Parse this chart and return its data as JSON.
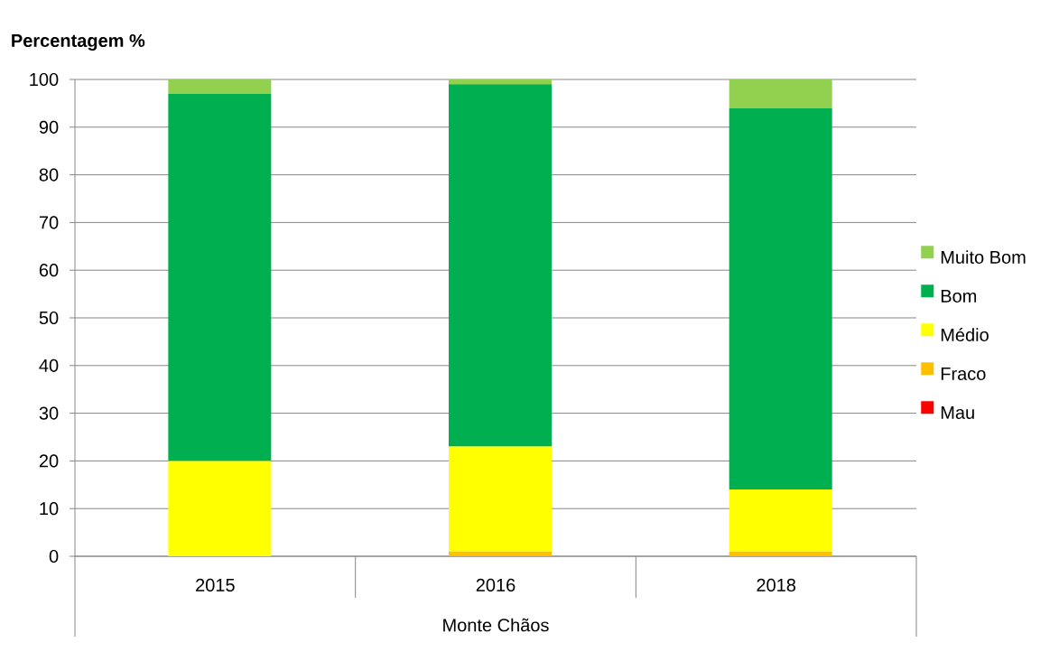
{
  "chart_data": {
    "type": "bar",
    "stacked": true,
    "ylabel": "Percentagem %",
    "xlabel": "Monte Chãos",
    "categories": [
      "2015",
      "2016",
      "2018"
    ],
    "series": [
      {
        "name": "Mau",
        "color": "#ff0000",
        "values": [
          0,
          0,
          0
        ]
      },
      {
        "name": "Fraco",
        "color": "#ffc000",
        "values": [
          0,
          1,
          1
        ]
      },
      {
        "name": "Médio",
        "color": "#ffff00",
        "values": [
          20,
          22,
          13
        ]
      },
      {
        "name": "Bom",
        "color": "#00b050",
        "values": [
          77,
          76,
          80
        ]
      },
      {
        "name": "Muito Bom",
        "color": "#92d050",
        "values": [
          3,
          1,
          6
        ]
      }
    ],
    "ylim": [
      0,
      100
    ],
    "yticks": [
      0,
      10,
      20,
      30,
      40,
      50,
      60,
      70,
      80,
      90,
      100
    ],
    "grid": "y",
    "legend": "right"
  }
}
